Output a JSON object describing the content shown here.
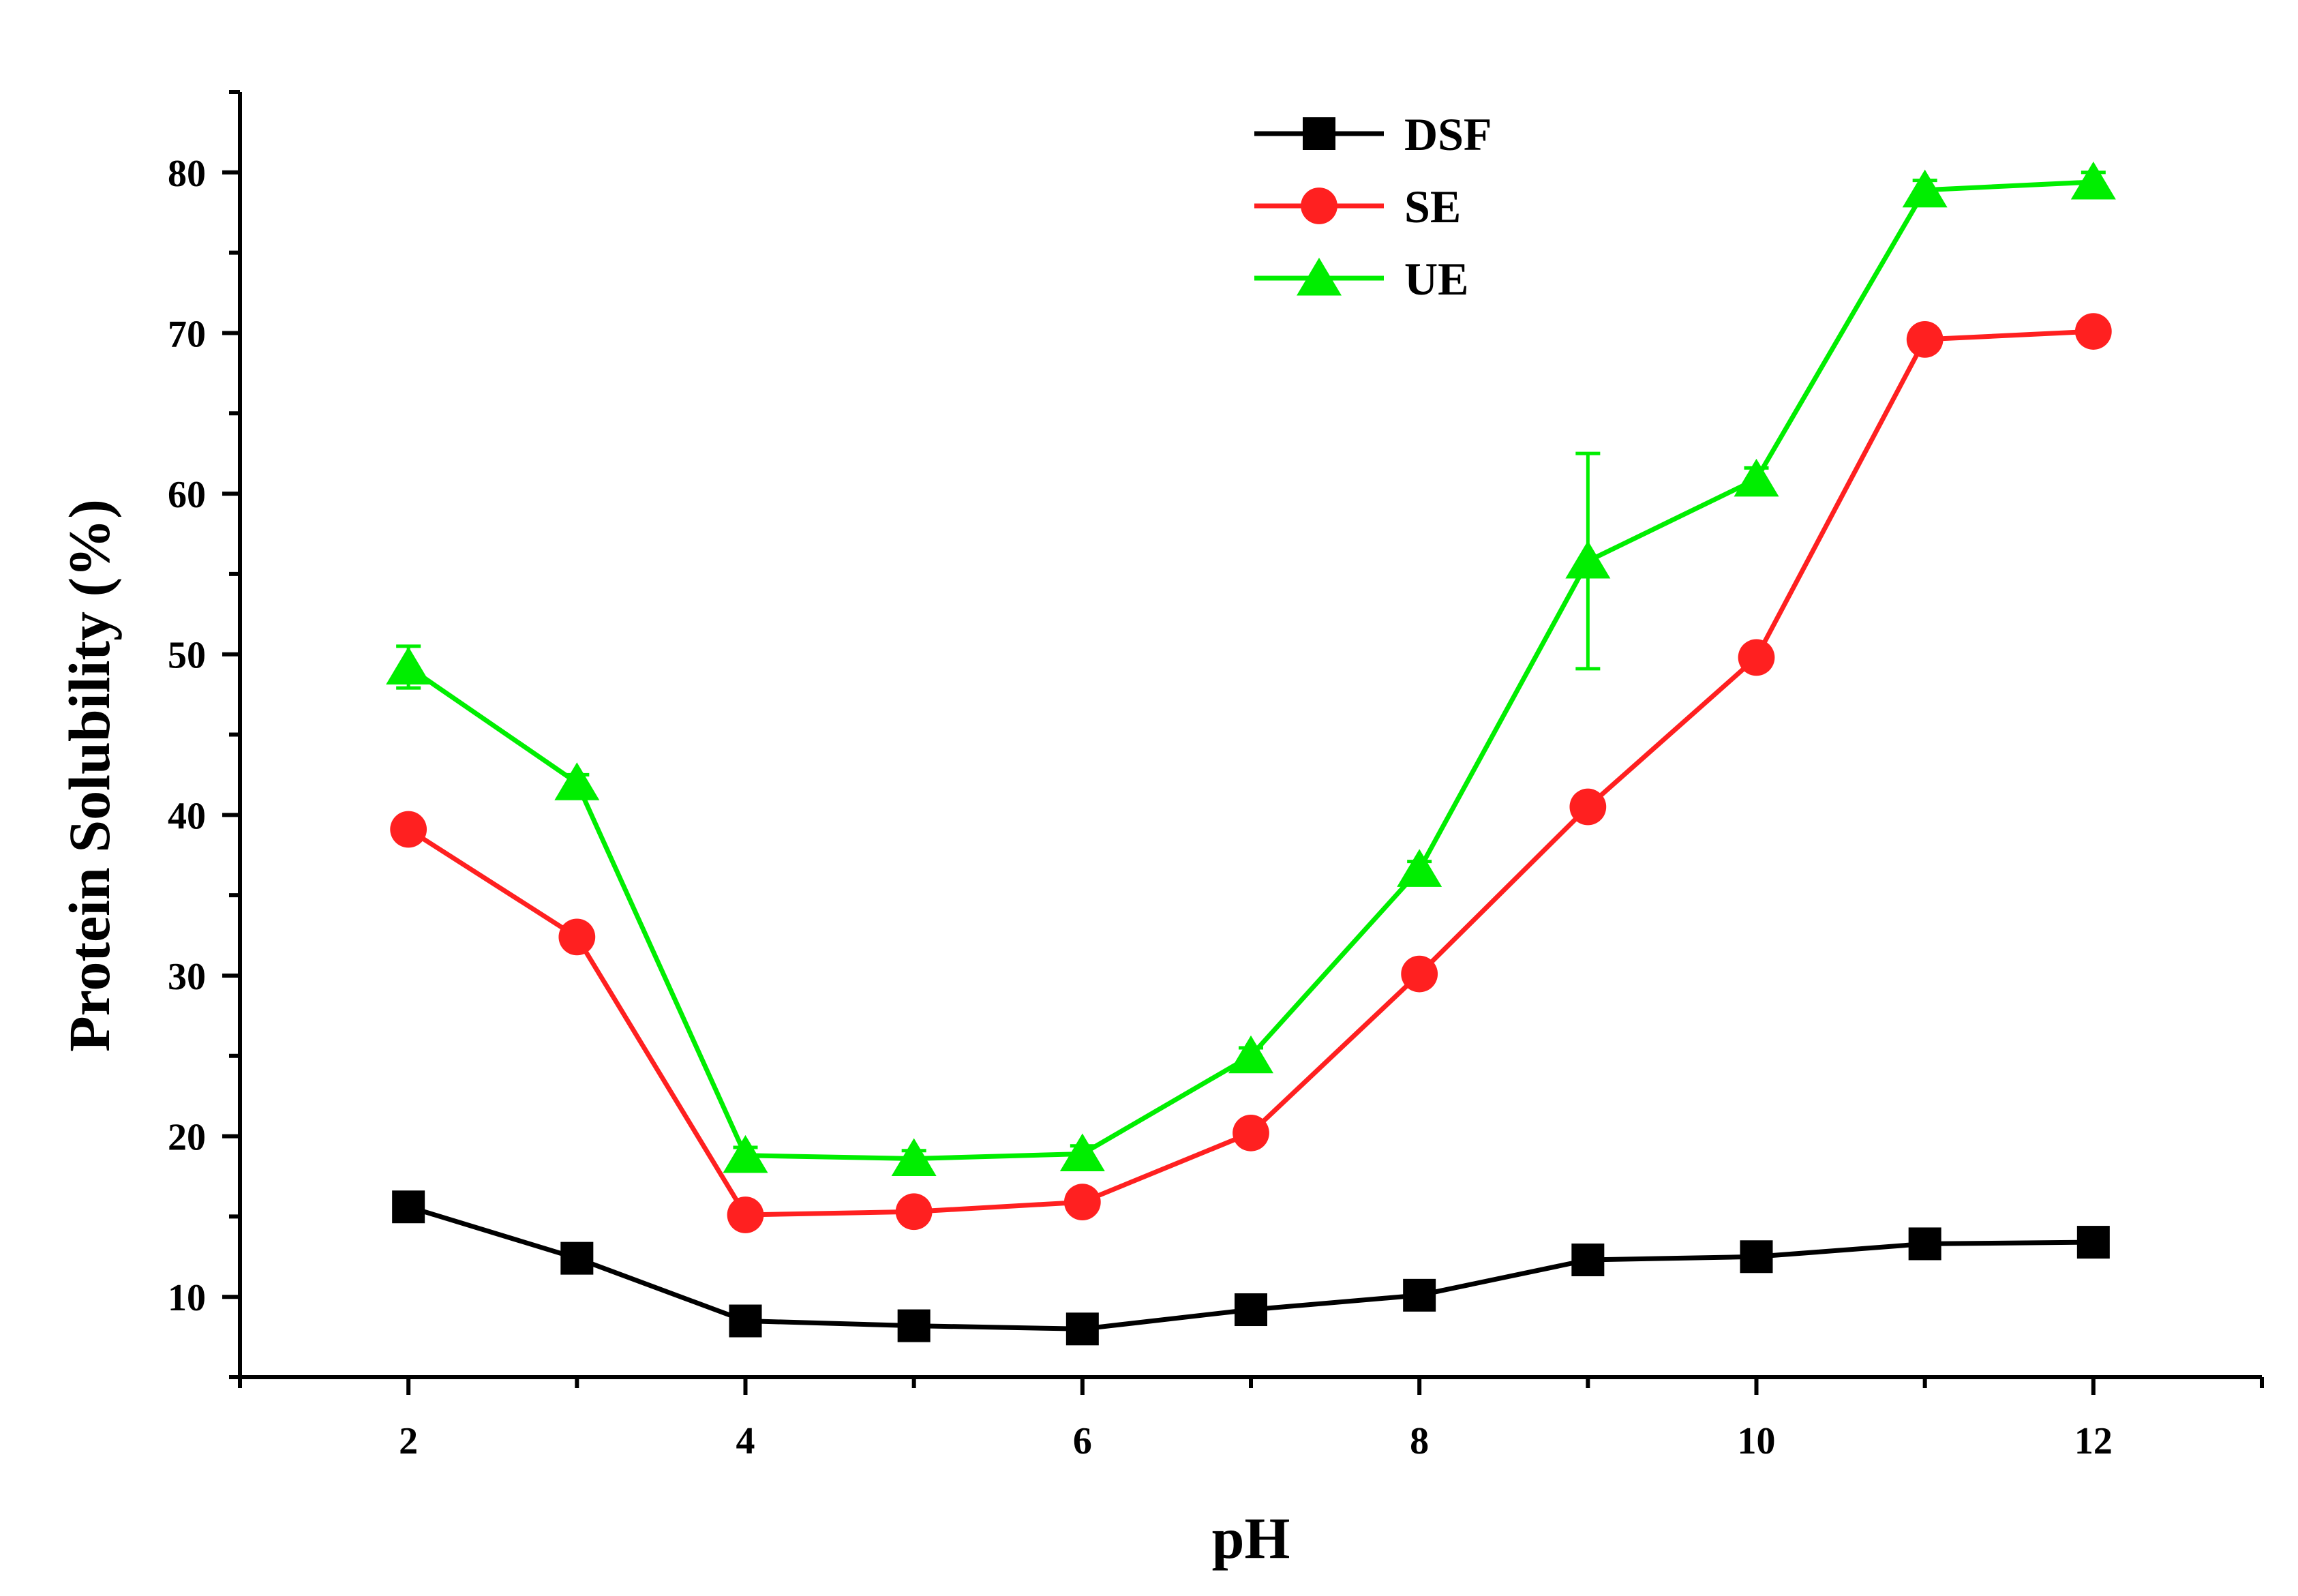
{
  "chart_data": {
    "type": "line",
    "title": "",
    "xlabel": "pH",
    "ylabel": "Protein Solubility (%)",
    "xlim": [
      1,
      13
    ],
    "ylim": [
      5,
      85
    ],
    "xticks": [
      2,
      4,
      6,
      8,
      10,
      12
    ],
    "yticks": [
      10,
      20,
      30,
      40,
      50,
      60,
      70,
      80
    ],
    "grid": false,
    "legend_position": "top-center",
    "x": [
      2,
      3,
      4,
      5,
      6,
      7,
      8,
      9,
      10,
      11,
      12
    ],
    "series": [
      {
        "name": "DSF",
        "color": "#000000",
        "marker": "square",
        "values": [
          15.6,
          12.4,
          8.5,
          8.2,
          8.0,
          9.2,
          10.1,
          12.3,
          12.5,
          13.3,
          13.4
        ]
      },
      {
        "name": "SE",
        "color": "#ff2020",
        "marker": "circle",
        "values": [
          39.1,
          32.4,
          15.1,
          15.3,
          15.9,
          20.2,
          30.1,
          40.5,
          49.8,
          69.6,
          70.1
        ]
      },
      {
        "name": "UE",
        "color": "#00ee00",
        "marker": "triangle",
        "values": [
          49.2,
          42.0,
          18.8,
          18.6,
          18.9,
          25.0,
          36.6,
          55.8,
          60.9,
          78.9,
          79.4
        ],
        "error": [
          1.3,
          0.5,
          0.5,
          0.5,
          0.5,
          0.5,
          0.5,
          6.7,
          0.7,
          0.6,
          0.6
        ]
      }
    ]
  }
}
